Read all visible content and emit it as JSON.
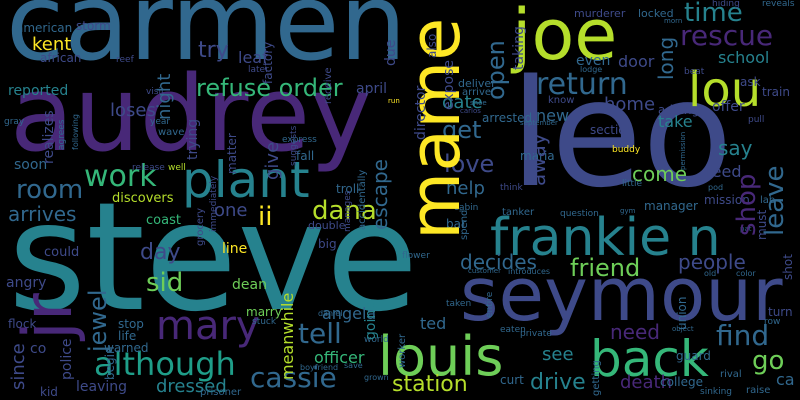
{
  "cloud": {
    "background": "#000000",
    "palette": [
      "#440154",
      "#482878",
      "#3e4a89",
      "#31688e",
      "#26828e",
      "#1f9e89",
      "#35b779",
      "#6ece58",
      "#b5de2b",
      "#fde725"
    ],
    "words": {
      "steve": "steve",
      "carmen": "carmen",
      "leo": "leo",
      "audrey": "audrey",
      "seymour": "seymour",
      "joe": "joe",
      "louis": "louis",
      "back": "back",
      "mame": "mame",
      "frankie_n": "frankie n",
      "lou": "lou",
      "plant": "plant",
      "jr": "jr",
      "mary": "mary",
      "although": "although",
      "cassie": "cassie",
      "refuse_order": "refuse order",
      "work": "work",
      "room": "room",
      "rescue": "rescue",
      "return": "return",
      "time": "time",
      "director": "director",
      "get": "get",
      "love": "love",
      "find": "find",
      "go": "go",
      "shop": "shop",
      "leave": "leave",
      "school": "school",
      "friend": "friend",
      "decides": "decides",
      "people": "people",
      "dana": "dana",
      "ii": "ii",
      "sid": "sid",
      "day": "day",
      "tell": "tell",
      "station": "station",
      "drive": "drive",
      "dressed": "dressed",
      "jewel": "jewel",
      "kent": "kent",
      "try": "try",
      "leaf": "leaf",
      "night": "night",
      "open": "open",
      "long": "long",
      "door": "door",
      "loses": "loses",
      "arrives": "arrives",
      "one": "one",
      "escape": "escape",
      "help": "help",
      "date": "date",
      "new": "new",
      "away": "away",
      "come": "come",
      "say": "say",
      "feed": "feed",
      "home": "home",
      "take": "take",
      "need": "need",
      "see": "see",
      "ted": "ted",
      "death": "death",
      "officer": "officer",
      "since": "since",
      "angela": "angela",
      "meanwhile": "meanwhile",
      "going": "going",
      "marry": "marry",
      "begin": "begin",
      "give": "give",
      "trying": "trying",
      "discovers": "discovers",
      "coast": "coast",
      "factory": "factory",
      "american": "american",
      "storm": "storm",
      "african": "african",
      "reported": "reported",
      "soon": "soon",
      "realizes": "realizes",
      "police": "police",
      "leaving": "leaving",
      "angry": "angry",
      "flock": "flock",
      "co": "co",
      "kid": "kid",
      "stop": "stop",
      "life": "life",
      "warned": "warned",
      "prisoner": "prisoner",
      "could": "could",
      "dean": "dean",
      "line": "line",
      "big": "big",
      "double": "double",
      "troll": "troll",
      "fall": "fall",
      "matter": "matter",
      "expose": "expose",
      "taking": "taking",
      "even": "even",
      "arrive": "arrive",
      "deliver": "deliver",
      "april": "april",
      "due": "due",
      "receive": "receive",
      "later": "later",
      "also": "also",
      "murderer": "murderer",
      "locked": "locked",
      "hiding": "hiding",
      "reveals": "reveals",
      "ask": "ask",
      "train": "train",
      "beat": "beat",
      "pull": "pull",
      "adding": "adding",
      "offer": "offer",
      "arrested": "arrested",
      "know": "know",
      "section": "section",
      "maria": "maria",
      "mission": "mission",
      "manager": "manager",
      "tanker": "tanker",
      "bar": "bar",
      "cabin": "cabin",
      "spend": "spend",
      "question": "question",
      "lab": "lab",
      "must": "must",
      "shot": "shot",
      "union": "union",
      "college": "college",
      "guard": "guard",
      "rival": "rival",
      "turn": "turn",
      "ca": "ca",
      "raise": "raise",
      "sinking": "sinking",
      "curt": "curt",
      "getting": "getting",
      "eaten": "eaten",
      "private": "private",
      "customer": "customer",
      "introduces": "introduces",
      "worker": "worker",
      "grown": "grown",
      "save": "save",
      "boyfriend": "boyfriend",
      "daniel": "daniel",
      "stuck": "stuck",
      "world": "world",
      "flower": "flower",
      "entire": "entire",
      "taken": "taken",
      "accidentally": "accidentally",
      "manages": "manages",
      "immediately": "immediately",
      "grocery": "grocery",
      "suggests": "suggests",
      "express": "express",
      "well": "well",
      "release": "release",
      "wave": "wave",
      "year": "year",
      "agrees": "agrees",
      "following": "following",
      "gray": "gray",
      "visit": "visit",
      "reef": "reef",
      "buddy": "buddy",
      "september": "september",
      "think": "think",
      "little": "little",
      "pod": "pod",
      "gym": "gym",
      "run": "run",
      "shoe": "shoe",
      "carlos": "carlos",
      "lodge": "lodge",
      "morn": "morn",
      "color": "color",
      "object": "object",
      "row": "row",
      "old": "old",
      "pat": "pat",
      "permission": "permission"
    }
  }
}
